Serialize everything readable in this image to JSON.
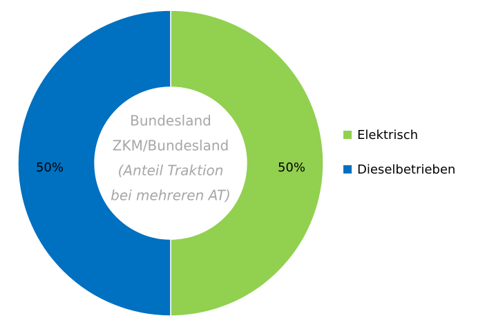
{
  "chart_data": {
    "type": "donut",
    "categories": [
      "Elektrisch",
      "Dieselbetrieben"
    ],
    "values": [
      50,
      50
    ],
    "value_labels": [
      "50%",
      "50%"
    ],
    "colors": [
      "#92d050",
      "#0070c0"
    ],
    "annotations": [
      {
        "text": "Bundesland",
        "italic": false
      },
      {
        "text": "ZKM/Bundesland",
        "italic": false
      },
      {
        "text": "(Anteil Traktion",
        "italic": true
      },
      {
        "text": "bei mehreren AT)",
        "italic": true
      }
    ],
    "legend": "right"
  }
}
